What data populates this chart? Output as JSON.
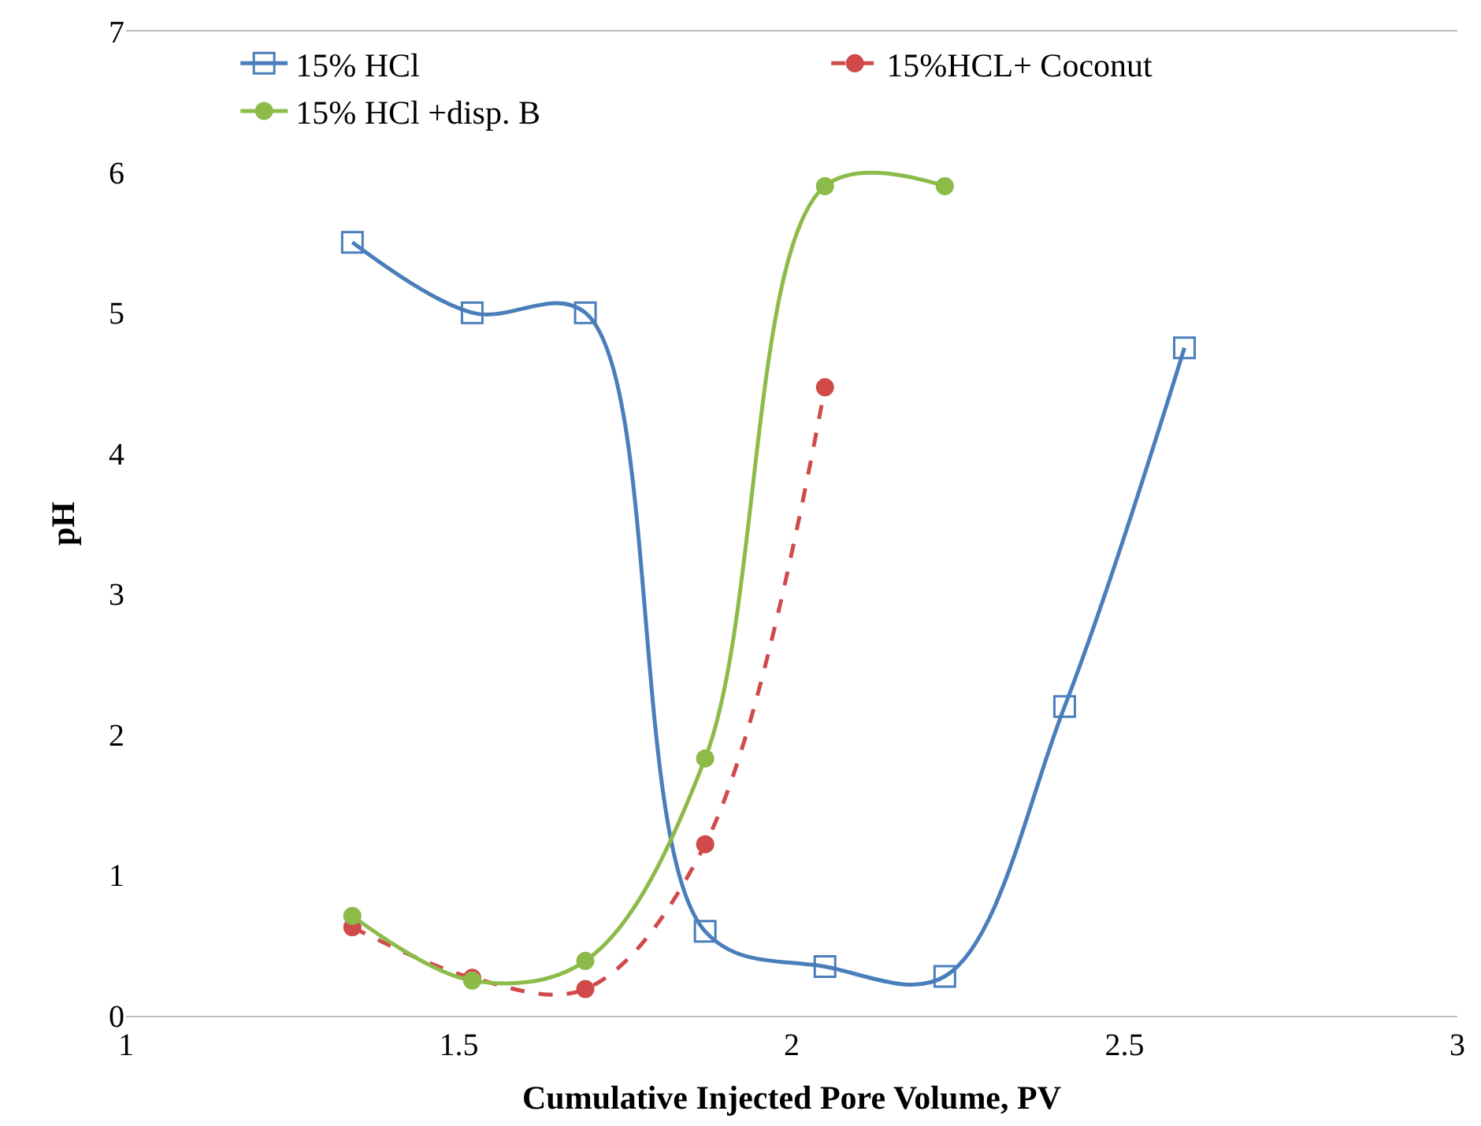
{
  "chart_data": {
    "type": "line",
    "xlabel": "Cumulative Injected Pore Volume, PV",
    "ylabel": "pH",
    "xlim": [
      1,
      3
    ],
    "xticks": [
      1,
      1.5,
      2,
      2.5,
      3
    ],
    "ylim": [
      0,
      7
    ],
    "yticks": [
      0,
      1,
      2,
      3,
      4,
      5,
      6,
      7
    ],
    "legend": "top",
    "series": [
      {
        "name": "15% HCl",
        "color": "#4a7ebb",
        "marker": "square",
        "line_style": "solid",
        "x": [
          1.34,
          1.52,
          1.69,
          1.87,
          2.05,
          2.23,
          2.41,
          2.59
        ],
        "values": [
          5.5,
          5.0,
          5.0,
          0.6,
          0.35,
          0.28,
          2.2,
          4.75
        ]
      },
      {
        "name": "15%HCL+ Coconut",
        "color": "#d04a4a",
        "marker": "circle",
        "line_style": "dashed",
        "x": [
          1.34,
          1.52,
          1.69,
          1.87,
          2.05
        ],
        "values": [
          0.63,
          0.27,
          0.19,
          1.22,
          4.47
        ]
      },
      {
        "name": "15% HCl +disp. B",
        "color": "#8cbb4a",
        "marker": "circle",
        "line_style": "solid",
        "x": [
          1.34,
          1.52,
          1.69,
          1.87,
          2.05,
          2.23
        ],
        "values": [
          0.71,
          0.25,
          0.39,
          1.83,
          5.9,
          5.9
        ]
      }
    ]
  }
}
